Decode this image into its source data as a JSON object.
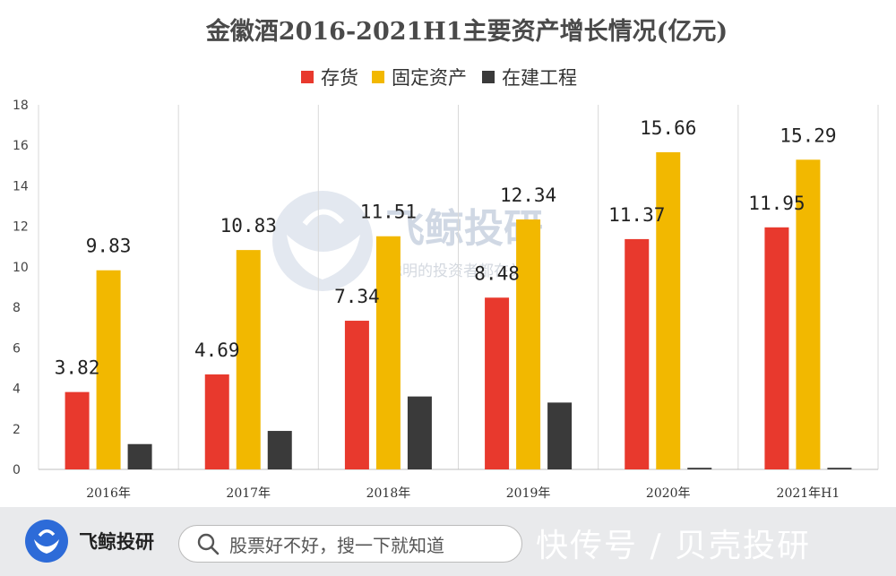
{
  "chart_data": {
    "type": "bar",
    "title": "金徽酒2016-2021H1主要资产增长情况(亿元)",
    "categories": [
      "2016年",
      "2017年",
      "2018年",
      "2019年",
      "2020年",
      "2021年H1"
    ],
    "series": [
      {
        "name": "存货",
        "color": "#e8392d",
        "values": [
          3.82,
          4.69,
          7.34,
          8.48,
          11.37,
          11.95
        ],
        "labels": [
          "3.82",
          "4.69",
          "7.34",
          "8.48",
          "11.37",
          "11.95"
        ]
      },
      {
        "name": "固定资产",
        "color": "#f2b800",
        "values": [
          9.83,
          10.83,
          11.51,
          12.34,
          15.66,
          15.29
        ],
        "labels": [
          "9.83",
          "10.83",
          "11.51",
          "12.34",
          "15.66",
          "15.29"
        ]
      },
      {
        "name": "在建工程",
        "color": "#3a3a3a",
        "values": [
          1.25,
          1.9,
          3.6,
          3.3,
          0.08,
          0.08
        ],
        "labels": []
      }
    ],
    "ylim": [
      0,
      18
    ],
    "yticks": [
      "0",
      "2",
      "4",
      "6",
      "8",
      "10",
      "12",
      "14",
      "16",
      "18"
    ],
    "legend_position": "top-center",
    "grid": "vertical"
  },
  "watermark": {
    "title": "飞鲸投研",
    "subtitle": "聪明的投资者都在关注"
  },
  "footer": {
    "brand_name": "飞鲸投研",
    "search_placeholder": "股票好不好，搜一下就知道",
    "site_mark": "快传号 / 贝壳投研",
    "brand_color": "#2d6bd8"
  }
}
